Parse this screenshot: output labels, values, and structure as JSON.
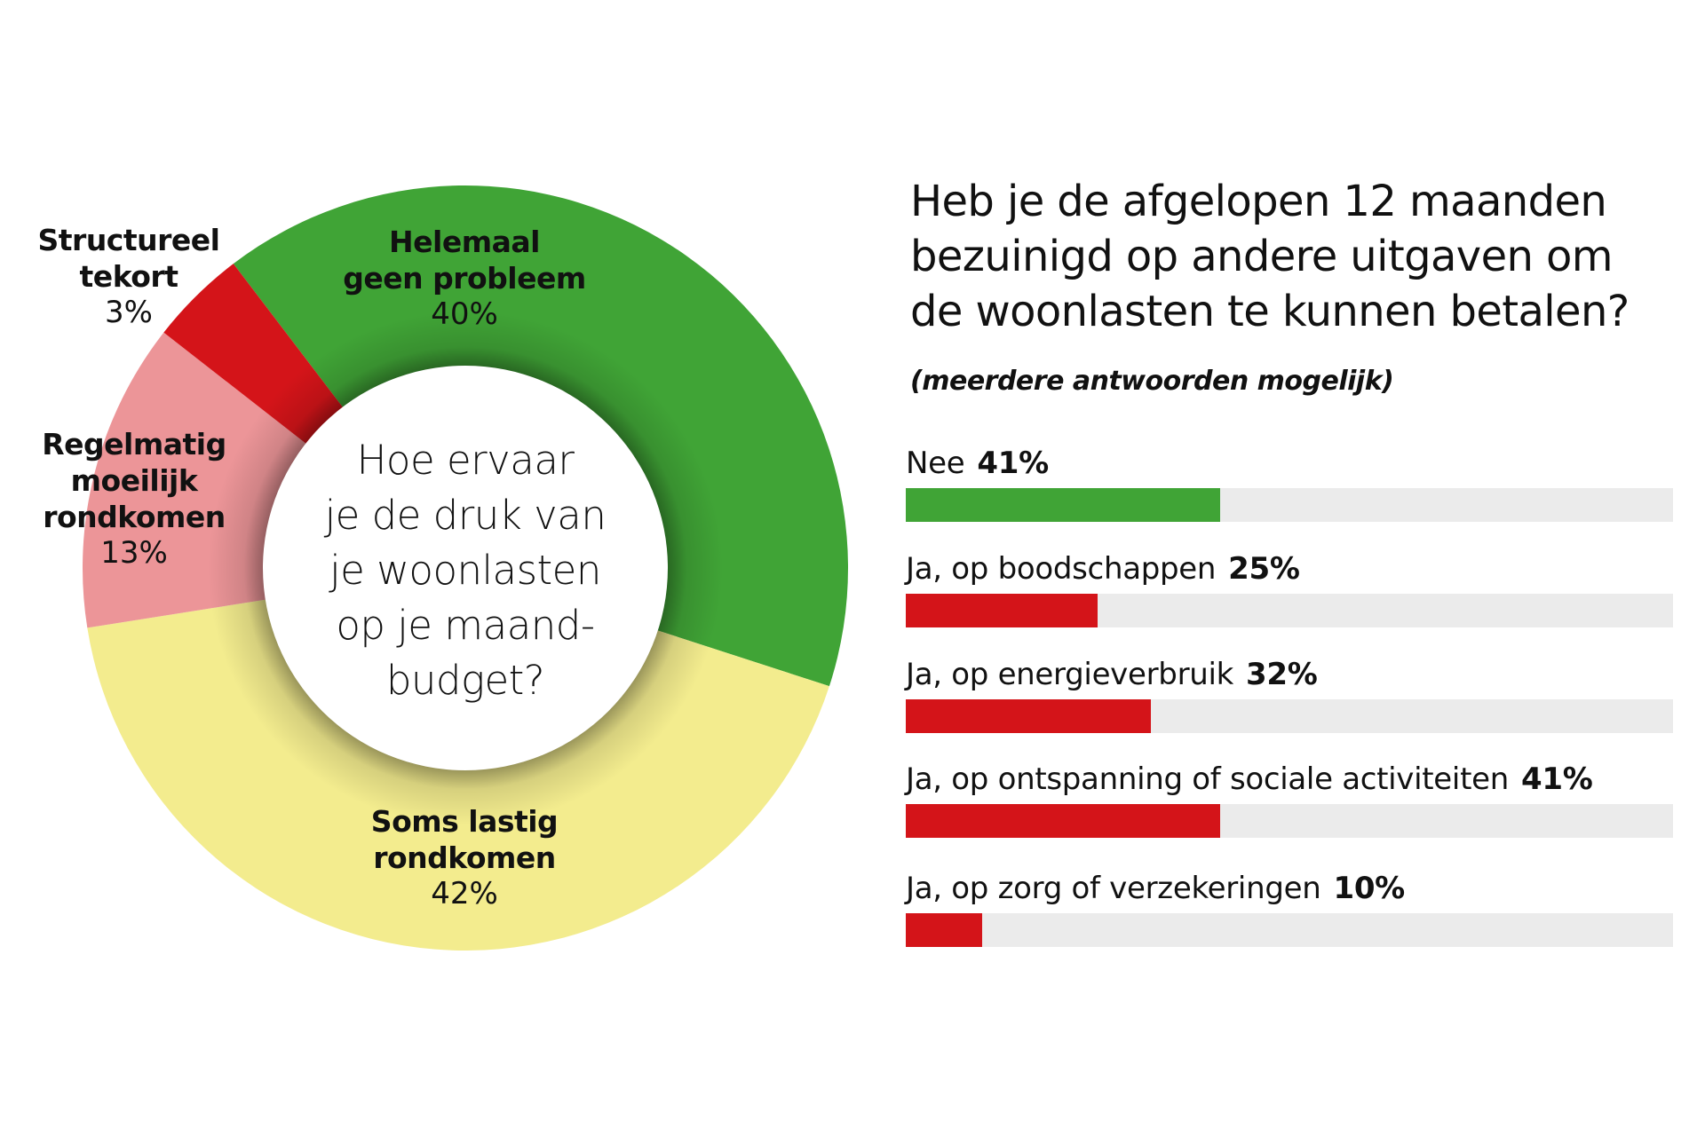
{
  "donut": {
    "center_question": "Hoe ervaar\nje de druk van\nje woonlasten\nop je maand-\nbudget?",
    "slices": [
      {
        "name": "Helemaal\ngeen probleem",
        "pct_label": "40%",
        "value": 40,
        "color": "#40a436",
        "start_angle": -37.3,
        "end_angle": 108
      },
      {
        "name": "Soms lastig\nrondkomen",
        "pct_label": "42%",
        "value": 42,
        "color": "#f3ec8e",
        "start_angle": 108,
        "end_angle": 261
      },
      {
        "name": "Regelmatig\nmoeilijk\nrondkomen",
        "pct_label": "13%",
        "value": 13,
        "color": "#ec9598",
        "start_angle": 261,
        "end_angle": 308
      },
      {
        "name": "Structureel\ntekort",
        "pct_label": "3%",
        "value": 3,
        "color": "#d41419",
        "start_angle": 308,
        "end_angle": 322.7
      }
    ]
  },
  "bars": {
    "title": "Heb je de afgelopen 12 maanden\nbezuinigd op andere uitgaven om\nde woonlasten te kunnen betalen?",
    "subtitle": "(meerdere antwoorden mogelijk)",
    "track_color": "#ebebeb",
    "items": [
      {
        "label": "Nee",
        "value_label": "41%",
        "value": 41,
        "color": "#40a436"
      },
      {
        "label": "Ja, op boodschappen",
        "value_label": "25%",
        "value": 25,
        "color": "#d41419"
      },
      {
        "label": "Ja, op energieverbruik",
        "value_label": "32%",
        "value": 32,
        "color": "#d41419"
      },
      {
        "label": "Ja, op ontspanning of sociale activiteiten",
        "value_label": "41%",
        "value": 41,
        "color": "#d41419"
      },
      {
        "label": "Ja, op zorg of verzekeringen",
        "value_label": "10%",
        "value": 10,
        "color": "#d41419"
      }
    ]
  },
  "chart_data": [
    {
      "type": "pie",
      "title": "Hoe ervaar je de druk van je woonlasten op je maandbudget?",
      "categories": [
        "Helemaal geen probleem",
        "Soms lastig rondkomen",
        "Regelmatig moeilijk rondkomen",
        "Structureel tekort"
      ],
      "values": [
        40,
        42,
        13,
        3
      ],
      "colors": [
        "#40a436",
        "#f3ec8e",
        "#ec9598",
        "#d41419"
      ],
      "donut": true,
      "unit": "%"
    },
    {
      "type": "bar",
      "orientation": "horizontal",
      "title": "Heb je de afgelopen 12 maanden bezuinigd op andere uitgaven om de woonlasten te kunnen betalen?",
      "subtitle": "(meerdere antwoorden mogelijk)",
      "categories": [
        "Nee",
        "Ja, op boodschappen",
        "Ja, op energieverbruik",
        "Ja, op ontspanning of sociale activiteiten",
        "Ja, op zorg of verzekeringen"
      ],
      "values": [
        41,
        25,
        32,
        41,
        10
      ],
      "xlim": [
        0,
        100
      ],
      "unit": "%",
      "grid": false
    }
  ]
}
